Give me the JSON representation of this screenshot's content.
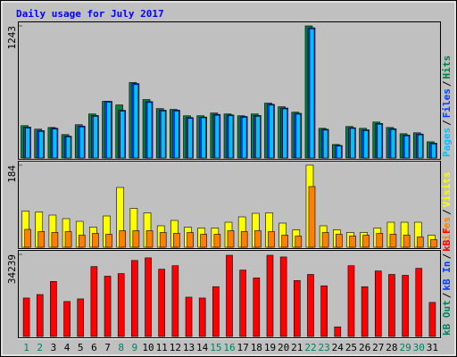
{
  "chart_data": [
    {
      "type": "bar",
      "title": "Daily usage for July 2017",
      "ylim": [
        0,
        1243
      ],
      "yticks": [
        1243
      ],
      "series": [
        {
          "name": "Hits",
          "color": "#008040",
          "values": [
            304,
            271,
            287,
            220,
            313,
            414,
            533,
            499,
            710,
            550,
            465,
            457,
            397,
            397,
            423,
            414,
            397,
            414,
            516,
            482,
            431,
            1243,
            279,
            127,
            296,
            279,
            338,
            287,
            228,
            237,
            152
          ]
        },
        {
          "name": "Files",
          "color": "#0040ff",
          "values": [
            290,
            258,
            280,
            205,
            300,
            400,
            533,
            448,
            700,
            530,
            450,
            450,
            380,
            385,
            410,
            405,
            390,
            400,
            505,
            470,
            420,
            1225,
            270,
            118,
            285,
            265,
            325,
            275,
            215,
            225,
            140
          ]
        },
        {
          "name": "Pages",
          "color": "#00c0ff",
          "values": [
            282,
            250,
            272,
            198,
            292,
            392,
            525,
            440,
            690,
            522,
            442,
            442,
            372,
            378,
            402,
            398,
            382,
            392,
            497,
            462,
            412,
            1215,
            262,
            112,
            278,
            258,
            318,
            268,
            208,
            218,
            132
          ]
        }
      ]
    },
    {
      "type": "bar",
      "ylim": [
        0,
        184
      ],
      "yticks": [
        184
      ],
      "series": [
        {
          "name": "Visits",
          "color": "#ffff00",
          "values": [
            81,
            79,
            72,
            64,
            58,
            45,
            70,
            134,
            87,
            77,
            48,
            60,
            45,
            43,
            43,
            56,
            68,
            76,
            77,
            54,
            39,
            184,
            48,
            39,
            33,
            33,
            43,
            56,
            56,
            56,
            27
          ]
        },
        {
          "name": "Sites",
          "color": "#ff8000",
          "values": [
            40,
            35,
            33,
            35,
            27,
            31,
            29,
            37,
            37,
            37,
            33,
            31,
            33,
            29,
            29,
            37,
            35,
            37,
            35,
            27,
            25,
            136,
            33,
            29,
            25,
            27,
            31,
            29,
            27,
            23,
            17
          ]
        }
      ]
    },
    {
      "type": "bar",
      "ylim": [
        0,
        34239
      ],
      "yticks": [
        34239
      ],
      "series": [
        {
          "name": "kB F",
          "color": "#ff0000",
          "values": [
            16027,
            17484,
            22948,
            14570,
            15663,
            29140,
            25133,
            26226,
            31690,
            32782,
            28047,
            29504,
            16391,
            16027,
            20762,
            33875,
            27683,
            24405,
            33875,
            33147,
            23312,
            25862,
            21127,
            4007,
            29504,
            20762,
            27319,
            25862,
            25498,
            28412,
            14206
          ]
        },
        {
          "name": "kB In",
          "color": "#0040ff"
        },
        {
          "name": "kB Out",
          "color": "#00805c"
        }
      ],
      "categories": [
        "1",
        "2",
        "3",
        "4",
        "5",
        "6",
        "7",
        "8",
        "9",
        "10",
        "11",
        "12",
        "13",
        "14",
        "15",
        "16",
        "17",
        "18",
        "19",
        "20",
        "21",
        "22",
        "23",
        "24",
        "25",
        "26",
        "27",
        "28",
        "29",
        "30",
        "31"
      ],
      "category_colors": [
        "#00805c",
        "#00805c",
        "#000000",
        "#000000",
        "#000000",
        "#000000",
        "#000000",
        "#00805c",
        "#00805c",
        "#000000",
        "#000000",
        "#000000",
        "#000000",
        "#000000",
        "#00805c",
        "#00805c",
        "#000000",
        "#000000",
        "#000000",
        "#000000",
        "#000000",
        "#00805c",
        "#00805c",
        "#000000",
        "#000000",
        "#000000",
        "#000000",
        "#000000",
        "#00805c",
        "#00805c",
        "#000000"
      ]
    }
  ],
  "legend_separator": "/"
}
